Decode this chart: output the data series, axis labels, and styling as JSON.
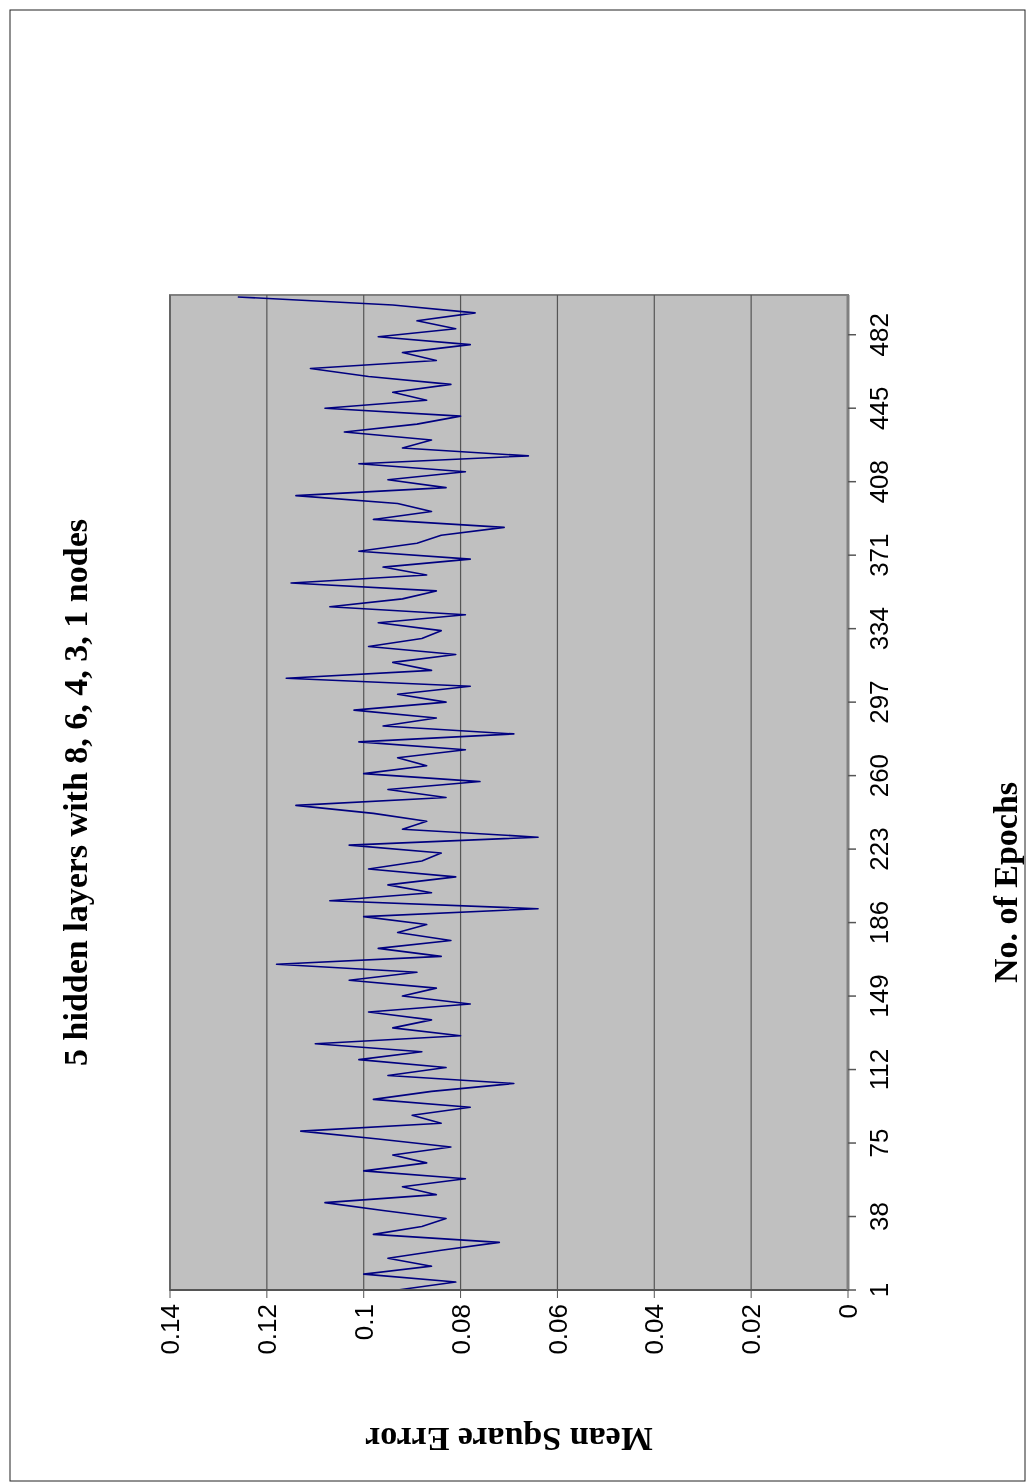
{
  "chart_data": {
    "type": "line",
    "title": "5 hidden layers with 8, 6, 4, 3, 1 nodes",
    "xlabel": "Mean Square Error",
    "ylabel": "No. of Epochs",
    "series": [
      {
        "color": "#000080",
        "x": [
          0.093,
          0.081,
          0.1,
          0.086,
          0.095,
          0.084,
          0.072,
          0.098,
          0.088,
          0.083,
          0.096,
          0.108,
          0.085,
          0.092,
          0.079,
          0.1,
          0.087,
          0.094,
          0.082,
          0.097,
          0.113,
          0.084,
          0.09,
          0.078,
          0.098,
          0.086,
          0.069,
          0.095,
          0.083,
          0.101,
          0.088,
          0.11,
          0.08,
          0.094,
          0.086,
          0.099,
          0.078,
          0.092,
          0.085,
          0.103,
          0.089,
          0.118,
          0.084,
          0.097,
          0.082,
          0.093,
          0.087,
          0.1,
          0.064,
          0.107,
          0.086,
          0.095,
          0.081,
          0.099,
          0.088,
          0.084,
          0.103,
          0.064,
          0.092,
          0.087,
          0.098,
          0.114,
          0.083,
          0.095,
          0.076,
          0.1,
          0.087,
          0.093,
          0.079,
          0.101,
          0.069,
          0.096,
          0.085,
          0.102,
          0.083,
          0.093,
          0.078,
          0.116,
          0.086,
          0.094,
          0.081,
          0.099,
          0.088,
          0.084,
          0.097,
          0.079,
          0.107,
          0.092,
          0.085,
          0.115,
          0.087,
          0.096,
          0.078,
          0.101,
          0.089,
          0.084,
          0.071,
          0.098,
          0.086,
          0.093,
          0.114,
          0.083,
          0.095,
          0.079,
          0.101,
          0.066,
          0.092,
          0.086,
          0.104,
          0.089,
          0.08,
          0.108,
          0.087,
          0.094,
          0.082,
          0.099,
          0.111,
          0.085,
          0.092,
          0.078,
          0.097,
          0.081,
          0.089,
          0.077,
          0.094,
          0.126
        ],
        "values": [
          1,
          5,
          9,
          13,
          17,
          21,
          25,
          29,
          33,
          37,
          41,
          45,
          49,
          53,
          57,
          61,
          65,
          69,
          73,
          77,
          81,
          85,
          89,
          93,
          97,
          101,
          105,
          109,
          113,
          117,
          121,
          125,
          129,
          133,
          137,
          141,
          145,
          149,
          153,
          157,
          161,
          165,
          169,
          173,
          177,
          181,
          185,
          189,
          193,
          197,
          201,
          205,
          209,
          213,
          217,
          221,
          225,
          229,
          233,
          237,
          241,
          245,
          249,
          253,
          257,
          261,
          265,
          269,
          273,
          277,
          281,
          285,
          289,
          293,
          297,
          301,
          305,
          309,
          313,
          317,
          321,
          325,
          329,
          333,
          337,
          341,
          345,
          349,
          353,
          357,
          361,
          365,
          369,
          373,
          377,
          381,
          385,
          389,
          393,
          397,
          401,
          405,
          409,
          413,
          417,
          421,
          425,
          429,
          433,
          437,
          441,
          445,
          449,
          453,
          457,
          461,
          465,
          469,
          473,
          477,
          481,
          485,
          489,
          493,
          497,
          501
        ]
      }
    ],
    "xlim": [
      0.14,
      0
    ],
    "xticks": [
      0.14,
      0.12,
      0.1,
      0.08,
      0.06,
      0.04,
      0.02,
      0
    ],
    "ylim": [
      1,
      502
    ],
    "yticks": [
      1,
      38,
      75,
      112,
      149,
      186,
      223,
      260,
      297,
      334,
      371,
      408,
      445,
      482
    ],
    "grid": "x",
    "marker": "none",
    "line_style": "solid"
  }
}
